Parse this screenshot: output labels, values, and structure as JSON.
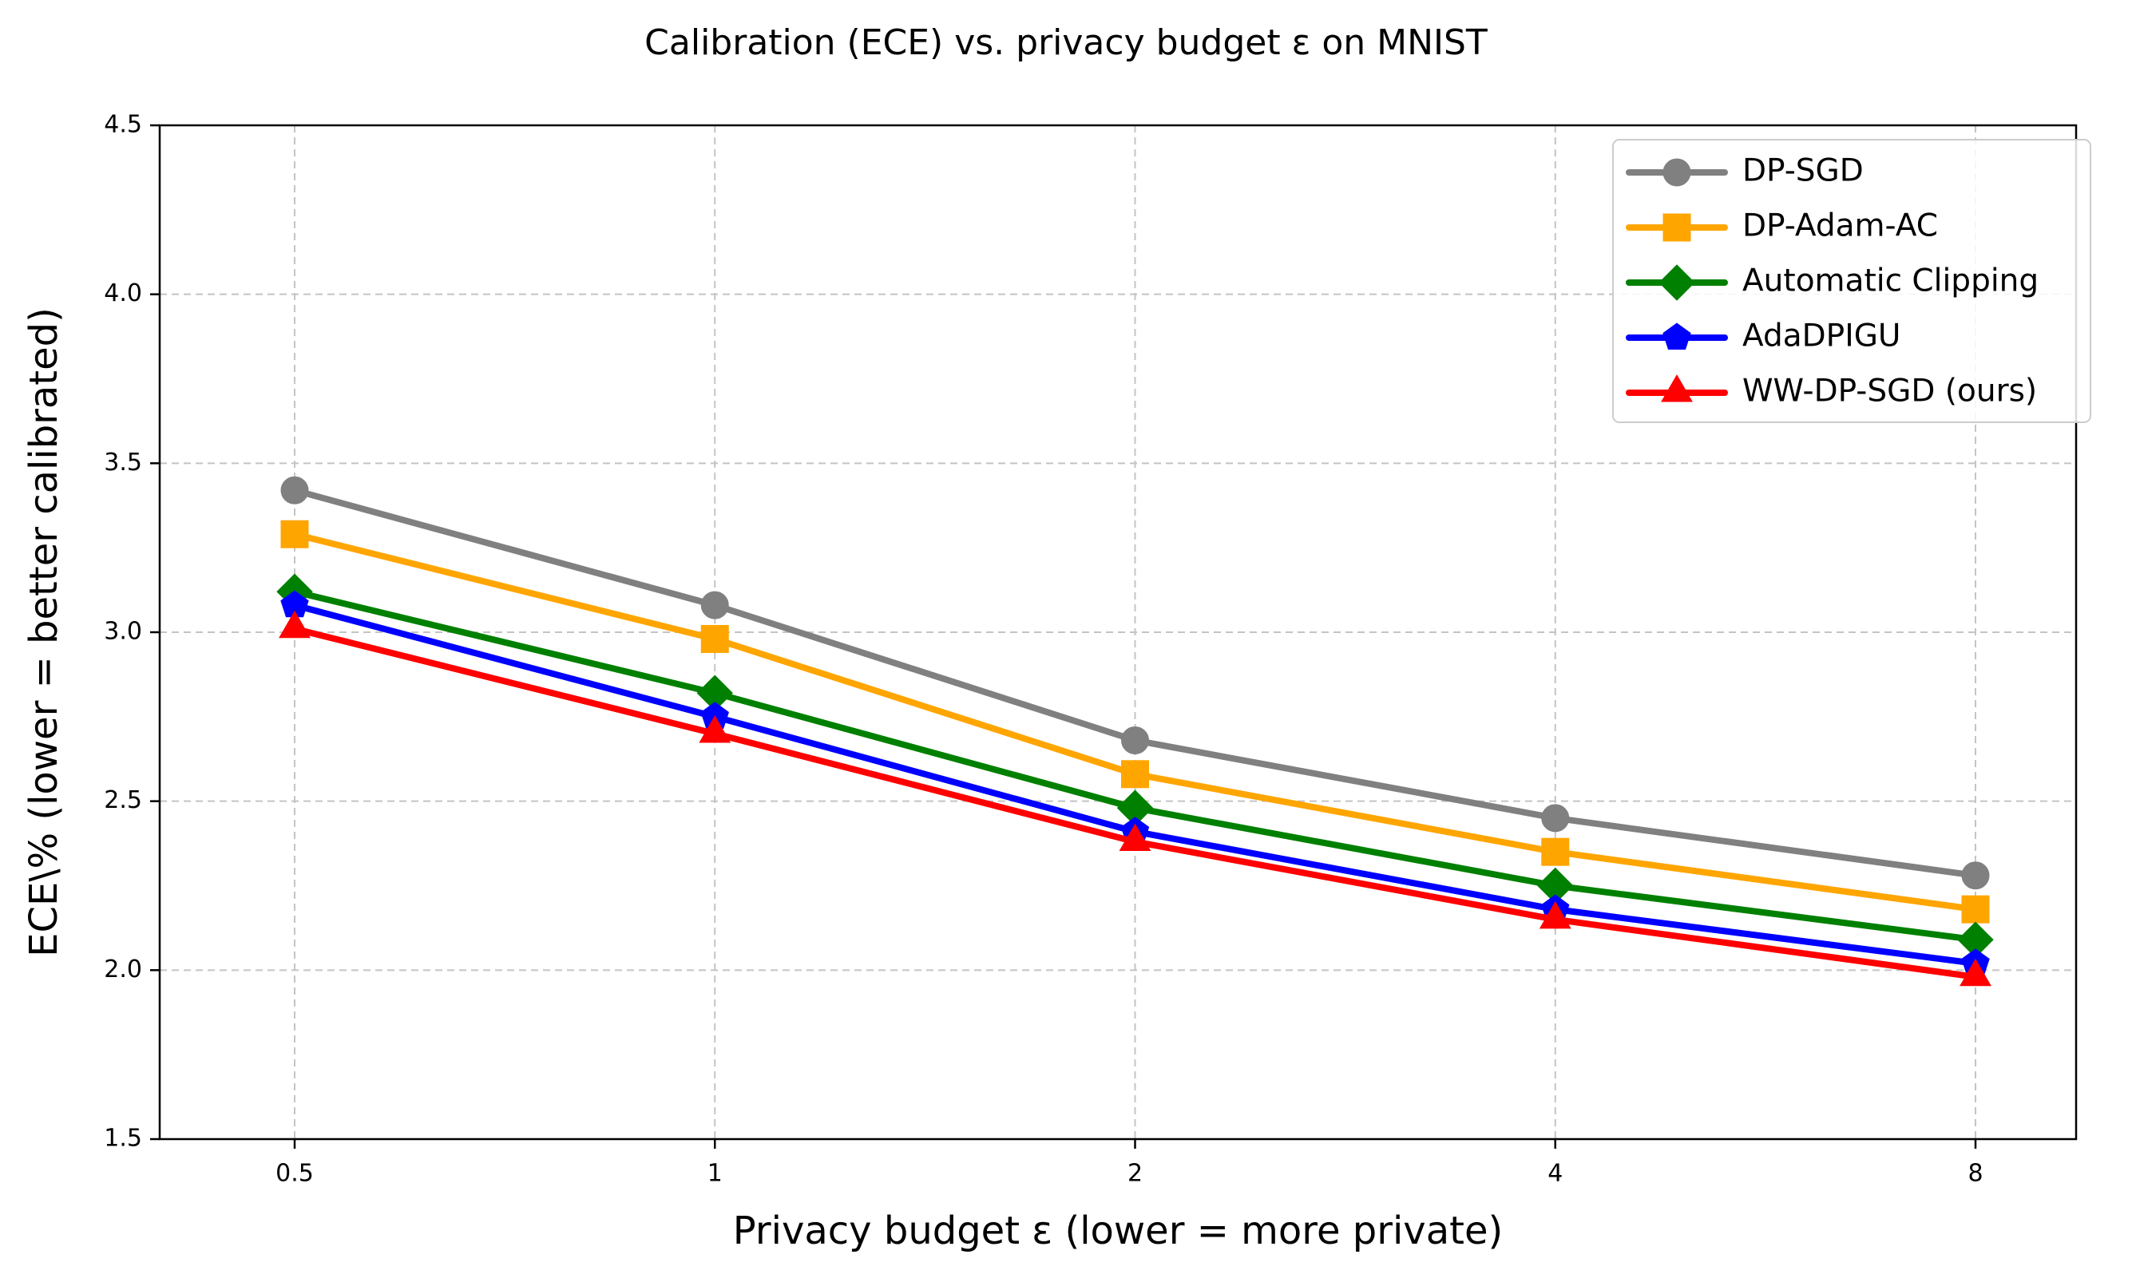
{
  "chart_data": {
    "type": "line",
    "title": "Calibration (ECE) vs. privacy budget ε on MNIST",
    "xlabel": "Privacy budget ε (lower = more private)",
    "ylabel": "ECE\\% (lower = better calibrated)",
    "categories": [
      "0.5",
      "1",
      "2",
      "4",
      "8"
    ],
    "x": [
      0.5,
      1,
      2,
      4,
      8
    ],
    "x_scale": "log2",
    "ylim": [
      1.5,
      4.5
    ],
    "yticks": [
      "1.5",
      "2.0",
      "2.5",
      "3.0",
      "3.5",
      "4.0",
      "4.5"
    ],
    "ytick_values": [
      1.5,
      2.0,
      2.5,
      3.0,
      3.5,
      4.0,
      4.5
    ],
    "grid": true,
    "legend_position": "top-right",
    "series": [
      {
        "name": "DP-SGD",
        "color": "#808080",
        "marker": "circle",
        "values": [
          3.42,
          3.08,
          2.68,
          2.45,
          2.28
        ]
      },
      {
        "name": "DP-Adam-AC",
        "color": "#ffa500",
        "marker": "square",
        "values": [
          3.29,
          2.98,
          2.58,
          2.35,
          2.18
        ]
      },
      {
        "name": "Automatic Clipping",
        "color": "#008000",
        "marker": "diamond",
        "values": [
          3.12,
          2.82,
          2.48,
          2.25,
          2.09
        ]
      },
      {
        "name": "AdaDPIGU",
        "color": "#0000ff",
        "marker": "pentagon",
        "values": [
          3.08,
          2.75,
          2.41,
          2.18,
          2.02
        ]
      },
      {
        "name": "WW-DP-SGD (ours)",
        "color": "#ff0000",
        "marker": "triangle",
        "values": [
          3.01,
          2.7,
          2.38,
          2.15,
          1.98
        ]
      }
    ]
  }
}
